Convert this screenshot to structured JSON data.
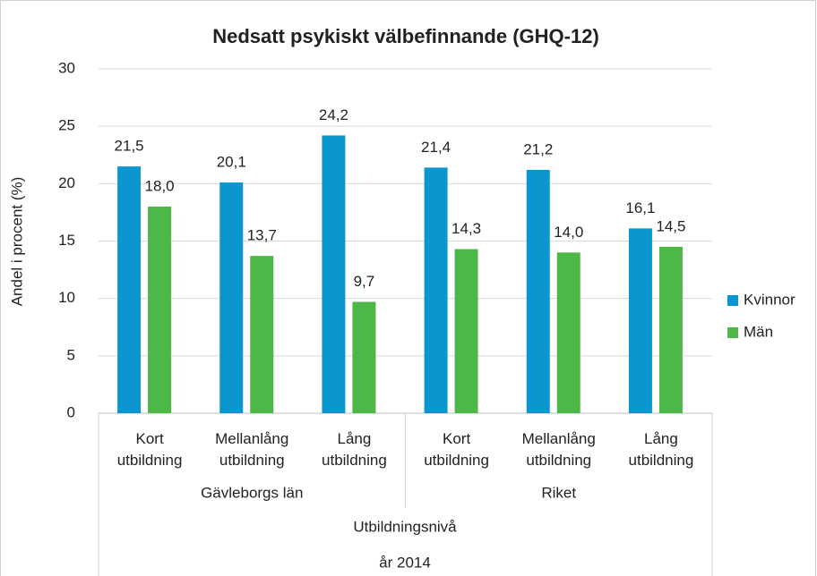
{
  "chart_data": {
    "type": "bar",
    "title": "Nedsatt psykiskt välbefinnande (GHQ-12)",
    "y_label": "Andel i procent (%)",
    "x_label": "Utbildningsnivå",
    "x_sublabel": "år 2014",
    "categories": [
      "Kort utbildning",
      "Mellanlång utbildning",
      "Lång utbildning",
      "Kort utbildning",
      "Mellanlång utbildning",
      "Lång utbildning"
    ],
    "groups": [
      {
        "name": "Gävleborgs län",
        "size": 3
      },
      {
        "name": "Riket",
        "size": 3
      }
    ],
    "series": [
      {
        "name": "Kvinnor",
        "color": "#0b96cf",
        "values": [
          21.5,
          20.1,
          24.2,
          21.4,
          21.2,
          16.1
        ],
        "value_labels": [
          "21,5",
          "20,1",
          "24,2",
          "21,4",
          "21,2",
          "16,1"
        ]
      },
      {
        "name": "Män",
        "color": "#4db848",
        "values": [
          18.0,
          13.7,
          9.7,
          14.3,
          14.0,
          14.5
        ],
        "value_labels": [
          "18,0",
          "13,7",
          "9,7",
          "14,3",
          "14,0",
          "14,5"
        ]
      }
    ],
    "ylim": [
      0,
      30
    ],
    "yticks": [
      0,
      5,
      10,
      15,
      20,
      25,
      30
    ],
    "grid": true,
    "legend": "right"
  }
}
